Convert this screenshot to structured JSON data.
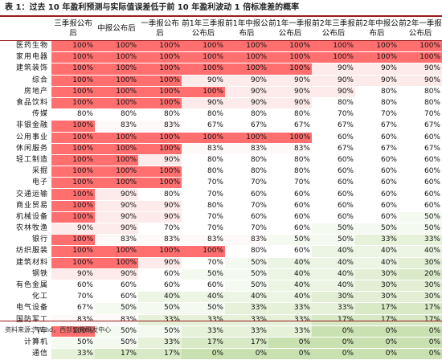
{
  "title": "表 1：过去 10 年盈利预测与实际值误差低于前 10 年盈利波动 1 倍标准差的概率",
  "source": "资料来源：Wind，西部证券研发中心",
  "columns": [
    "三季报公布后",
    "中报公布后",
    "一季报公布后",
    "前1年三季报公布后",
    "前1年中报公布后",
    "前1年一季报公布后",
    "前2年三季报公布后",
    "前2年中报公布后",
    "前2年一季报公布后"
  ],
  "colors": {
    "red_full": "#ff6f6f",
    "red_light": "#fdeaea",
    "white": "#ffffff",
    "green_light": "#e2efd5",
    "green_full": "#c9e0b0",
    "rule": "#9a1b1b"
  },
  "rows": [
    {
      "name": "医药生物",
      "values": [
        "100%",
        "100%",
        "100%",
        "100%",
        "100%",
        "100%",
        "100%",
        "100%",
        "100%"
      ]
    },
    {
      "name": "家用电器",
      "values": [
        "100%",
        "100%",
        "100%",
        "100%",
        "100%",
        "100%",
        "100%",
        "100%",
        "100%"
      ]
    },
    {
      "name": "建筑装饰",
      "values": [
        "100%",
        "100%",
        "100%",
        "100%",
        "100%",
        "100%",
        "90%",
        "90%",
        "90%"
      ]
    },
    {
      "name": "综合",
      "values": [
        "100%",
        "100%",
        "100%",
        "90%",
        "90%",
        "90%",
        "90%",
        "90%",
        "90%"
      ]
    },
    {
      "name": "房地产",
      "values": [
        "100%",
        "100%",
        "100%",
        "100%",
        "90%",
        "90%",
        "90%",
        "80%",
        "80%"
      ]
    },
    {
      "name": "食品饮料",
      "values": [
        "100%",
        "100%",
        "100%",
        "90%",
        "90%",
        "90%",
        "80%",
        "80%",
        "80%"
      ]
    },
    {
      "name": "传媒",
      "values": [
        "80%",
        "80%",
        "80%",
        "80%",
        "80%",
        "80%",
        "70%",
        "70%",
        "70%"
      ]
    },
    {
      "name": "非银金融",
      "values": [
        "100%",
        "83%",
        "83%",
        "67%",
        "67%",
        "67%",
        "67%",
        "67%",
        "67%"
      ]
    },
    {
      "name": "公用事业",
      "values": [
        "100%",
        "100%",
        "100%",
        "100%",
        "100%",
        "100%",
        "60%",
        "60%",
        "60%"
      ]
    },
    {
      "name": "休闲服务",
      "values": [
        "100%",
        "100%",
        "100%",
        "83%",
        "83%",
        "83%",
        "67%",
        "67%",
        "67%"
      ]
    },
    {
      "name": "轻工制造",
      "values": [
        "100%",
        "100%",
        "90%",
        "80%",
        "80%",
        "80%",
        "60%",
        "60%",
        "60%"
      ]
    },
    {
      "name": "采掘",
      "values": [
        "100%",
        "100%",
        "100%",
        "80%",
        "80%",
        "80%",
        "60%",
        "60%",
        "60%"
      ]
    },
    {
      "name": "电子",
      "values": [
        "100%",
        "100%",
        "100%",
        "70%",
        "70%",
        "70%",
        "60%",
        "60%",
        "60%"
      ]
    },
    {
      "name": "交通运输",
      "values": [
        "100%",
        "90%",
        "80%",
        "70%",
        "60%",
        "60%",
        "60%",
        "60%",
        "60%"
      ]
    },
    {
      "name": "商业贸易",
      "values": [
        "100%",
        "90%",
        "90%",
        "80%",
        "70%",
        "60%",
        "60%",
        "60%",
        "60%"
      ]
    },
    {
      "name": "机械设备",
      "values": [
        "100%",
        "90%",
        "90%",
        "70%",
        "60%",
        "60%",
        "60%",
        "60%",
        "50%"
      ]
    },
    {
      "name": "农林牧渔",
      "values": [
        "90%",
        "90%",
        "70%",
        "70%",
        "70%",
        "60%",
        "50%",
        "50%",
        "50%"
      ]
    },
    {
      "name": "银行",
      "values": [
        "100%",
        "83%",
        "83%",
        "83%",
        "83%",
        "50%",
        "50%",
        "33%",
        "33%"
      ]
    },
    {
      "name": "纺织服装",
      "values": [
        "100%",
        "100%",
        "100%",
        "100%",
        "80%",
        "60%",
        "40%",
        "40%",
        "40%"
      ]
    },
    {
      "name": "建筑材料",
      "values": [
        "100%",
        "100%",
        "90%",
        "70%",
        "50%",
        "40%",
        "40%",
        "40%",
        "30%"
      ]
    },
    {
      "name": "钢铁",
      "values": [
        "90%",
        "90%",
        "60%",
        "50%",
        "50%",
        "40%",
        "40%",
        "30%",
        "20%"
      ]
    },
    {
      "name": "有色金属",
      "values": [
        "60%",
        "60%",
        "60%",
        "60%",
        "50%",
        "40%",
        "40%",
        "30%",
        "30%"
      ]
    },
    {
      "name": "化工",
      "values": [
        "70%",
        "60%",
        "40%",
        "40%",
        "40%",
        "40%",
        "30%",
        "30%",
        "30%"
      ]
    },
    {
      "name": "电气设备",
      "values": [
        "67%",
        "50%",
        "50%",
        "50%",
        "33%",
        "33%",
        "33%",
        "17%",
        "17%"
      ]
    },
    {
      "name": "国防军工",
      "values": [
        "83%",
        "83%",
        "33%",
        "33%",
        "33%",
        "33%",
        "17%",
        "17%",
        "17%"
      ]
    },
    {
      "name": "汽车",
      "values": [
        "100%",
        "50%",
        "50%",
        "33%",
        "33%",
        "33%",
        "0%",
        "0%",
        "0%"
      ]
    },
    {
      "name": "计算机",
      "values": [
        "50%",
        "50%",
        "33%",
        "17%",
        "17%",
        "0%",
        "0%",
        "0%",
        "0%"
      ]
    },
    {
      "name": "通信",
      "values": [
        "33%",
        "17%",
        "17%",
        "0%",
        "0%",
        "0%",
        "0%",
        "0%",
        "0%"
      ]
    }
  ]
}
